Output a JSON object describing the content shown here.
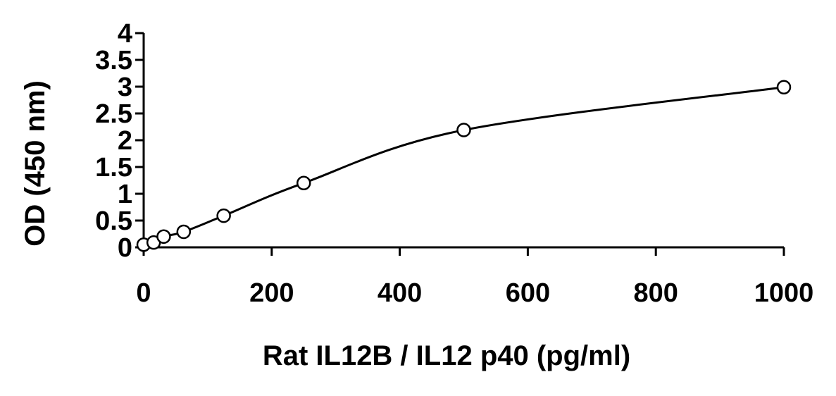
{
  "chart_data": {
    "type": "scatter",
    "xlabel": "Rat IL12B / IL12 p40 (pg/ml)",
    "ylabel": "OD (450 nm)",
    "xlim": [
      0,
      1000
    ],
    "ylim": [
      0,
      4
    ],
    "xticks": [
      0,
      200,
      400,
      600,
      800,
      1000
    ],
    "yticks": [
      0,
      0.5,
      1,
      1.5,
      2,
      2.5,
      3,
      3.5,
      4
    ],
    "xtick_labels": [
      "0",
      "200",
      "400",
      "600",
      "800",
      "1000"
    ],
    "ytick_labels": [
      "0",
      "0.5",
      "1",
      "1.5",
      "2",
      "2.5",
      "3",
      "3.5",
      "4"
    ],
    "grid": false,
    "legend": "none",
    "marker": "open-circle",
    "fit": "smooth-curve",
    "series": [
      {
        "x": [
          0,
          15.6,
          31.3,
          62.5,
          125,
          250,
          500,
          1000
        ],
        "y": [
          0.05,
          0.09,
          0.2,
          0.29,
          0.59,
          1.2,
          2.19,
          2.99
        ]
      }
    ],
    "colors": {
      "marker_stroke": "#000000",
      "marker_fill": "#ffffff",
      "line": "#000000",
      "axis": "#000000"
    }
  }
}
